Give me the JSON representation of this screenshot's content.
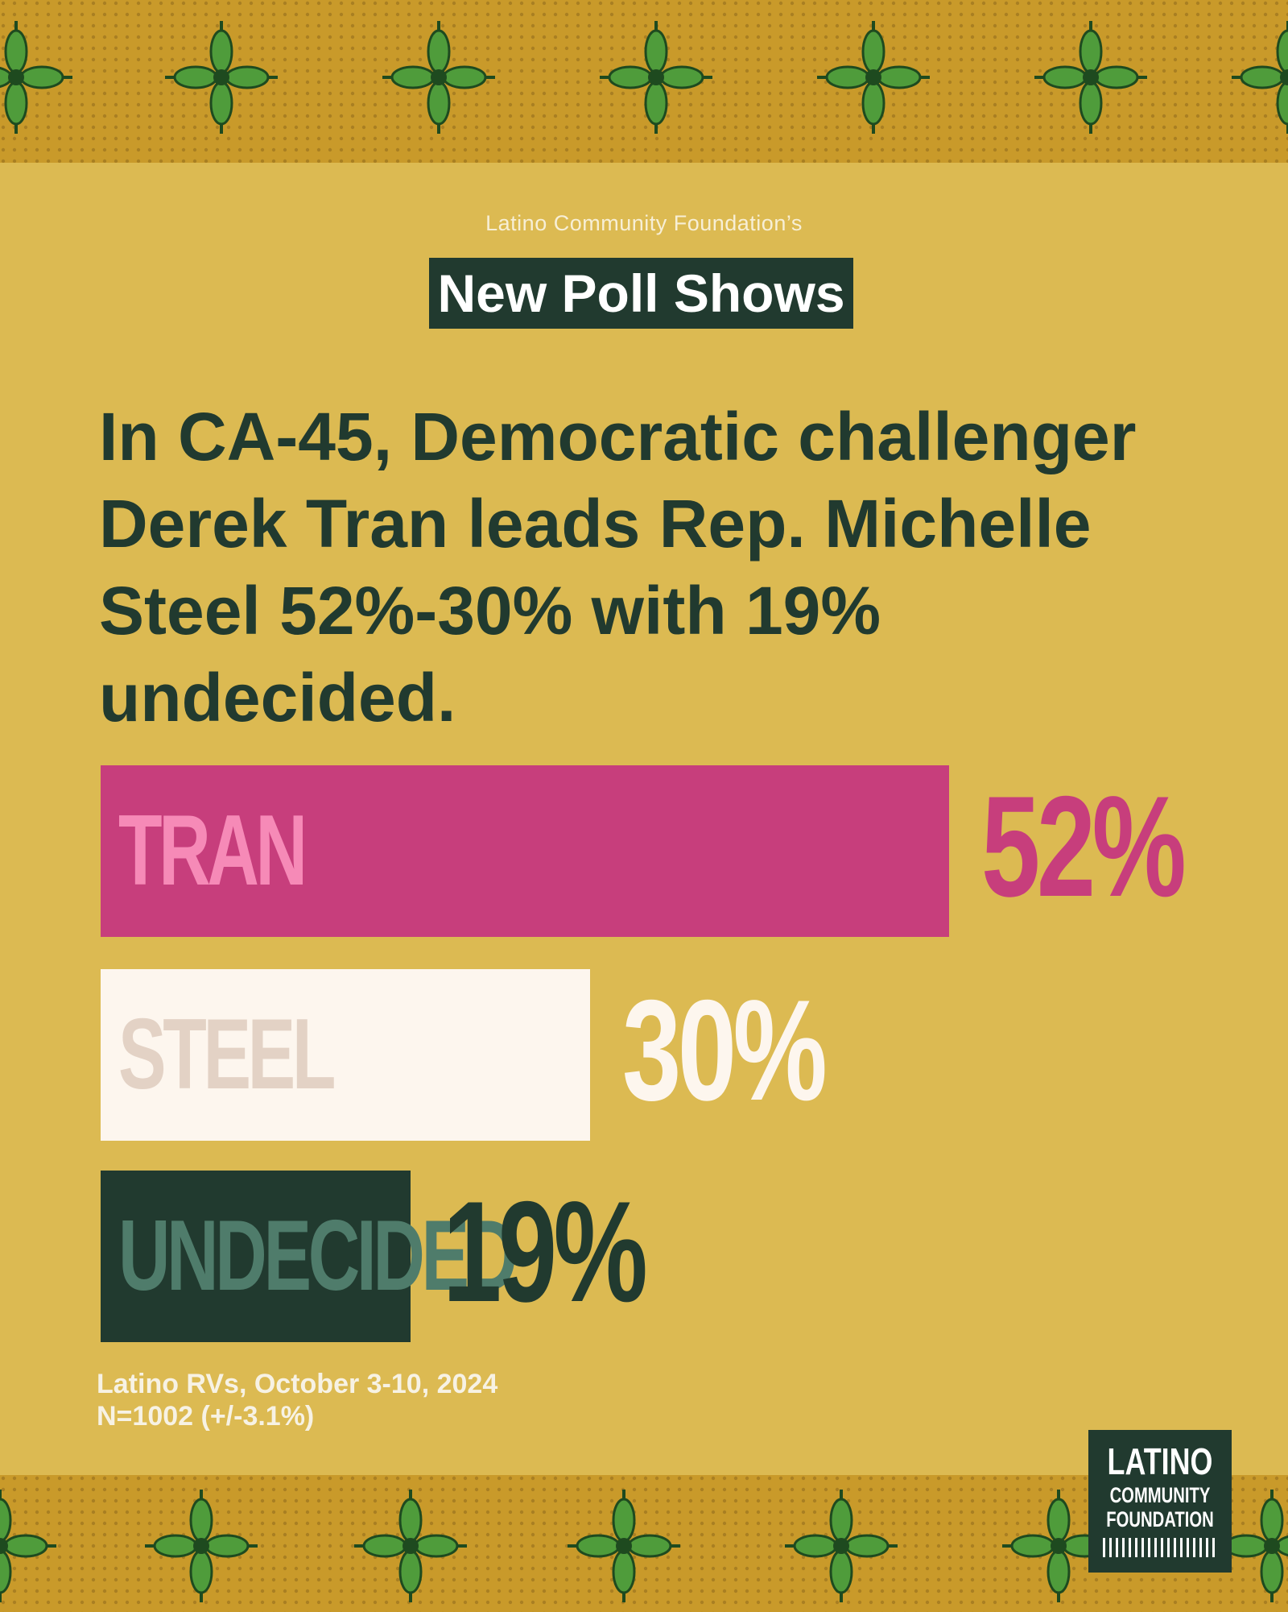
{
  "header": {
    "org_line": "Latino Community Foundation’s",
    "poll_title": "New Poll Shows"
  },
  "headline": {
    "lines": [
      "In CA-45, Democratic challenger",
      "Derek Tran leads Rep. Michelle",
      "Steel 52%-30% with 19%",
      "undecided."
    ]
  },
  "chart_data": {
    "type": "bar",
    "orientation": "horizontal",
    "categories": [
      "TRAN",
      "STEEL",
      "UNDECIDED"
    ],
    "values": [
      52,
      30,
      19
    ],
    "value_labels": [
      "52%",
      "30%",
      "19%"
    ],
    "unit": "%",
    "xlim": [
      0,
      100
    ],
    "title": "",
    "xlabel": "",
    "ylabel": "",
    "colors": {
      "bars": [
        "#c73e7c",
        "#fdf6ee",
        "#213a2f"
      ],
      "labels": [
        "#f68ab7",
        "#e3d2c5",
        "#4f7c6b"
      ],
      "values": [
        "#c73e7c",
        "#fdf6ee",
        "#213a2f"
      ]
    }
  },
  "source": {
    "line1": "Latino RVs, October 3-10, 2024",
    "line2": "N=1002 (+/-3.1%)"
  },
  "logo": {
    "line1": "LATINO",
    "line2": "COMMUNITY",
    "line3": "FOUNDATION"
  },
  "colors": {
    "background": "#dcba52",
    "border_pattern": "#c99a2a",
    "dark_green": "#213a2f",
    "pink": "#c73e7c"
  }
}
